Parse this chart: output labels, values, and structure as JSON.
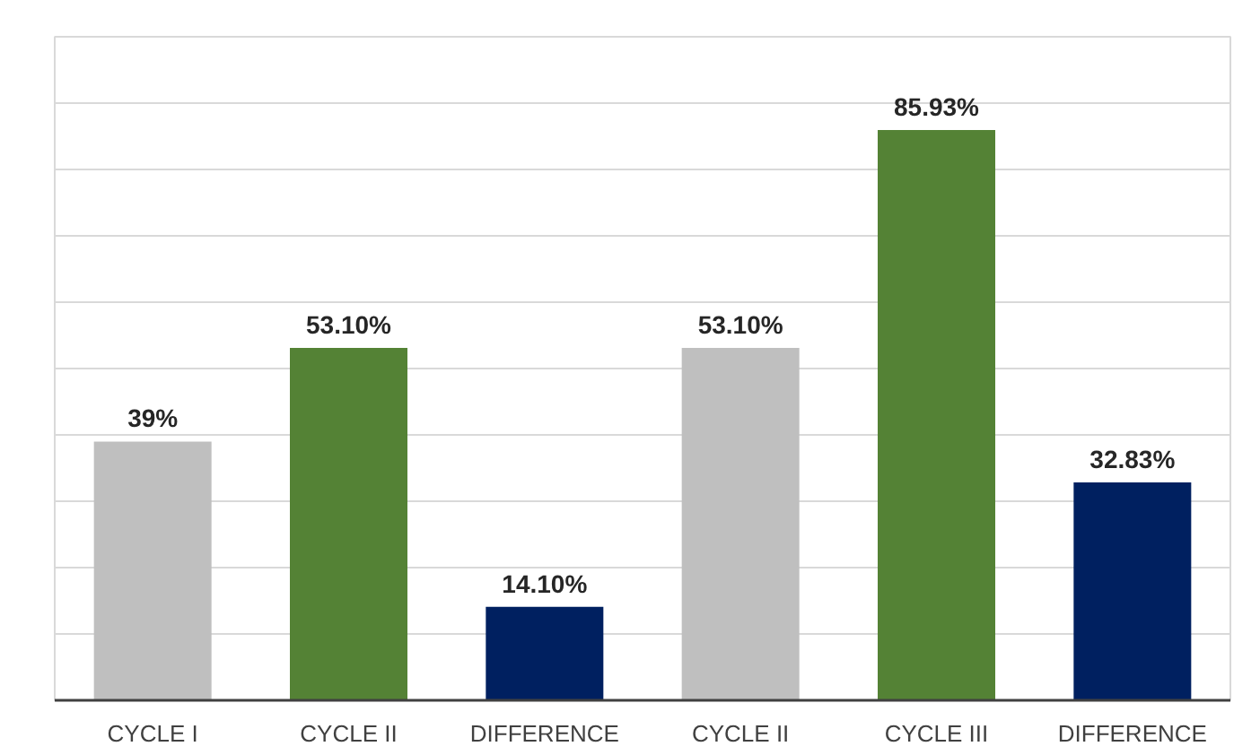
{
  "chart_data": {
    "type": "bar",
    "categories": [
      "CYCLE I",
      "CYCLE II",
      "DIFFERENCE",
      "CYCLE II",
      "CYCLE III",
      "DIFFERENCE"
    ],
    "values": [
      39,
      53.1,
      14.1,
      53.1,
      85.93,
      32.83
    ],
    "colors": [
      "#bfbfbf",
      "#548235",
      "#002060",
      "#bfbfbf",
      "#548235",
      "#002060"
    ],
    "value_labels": [
      "39%",
      "53.10%",
      "14.10%",
      "53.10%",
      "85.93%",
      "32.83%"
    ],
    "ylim": [
      0,
      100
    ],
    "yticks": [
      {
        "value": 0,
        "label": null
      },
      {
        "value": 10,
        "label": null
      },
      {
        "value": 20,
        "label": null
      },
      {
        "value": 30,
        "label": null
      },
      {
        "value": 40,
        "label": null
      },
      {
        "value": 50,
        "label": null
      },
      {
        "value": 60,
        "label": null
      },
      {
        "value": 70,
        "label": null
      },
      {
        "value": 80,
        "label": null
      },
      {
        "value": 90,
        "label": null
      },
      {
        "value": 100,
        "label": null
      }
    ],
    "tick_labels": "x",
    "grid": "y"
  }
}
